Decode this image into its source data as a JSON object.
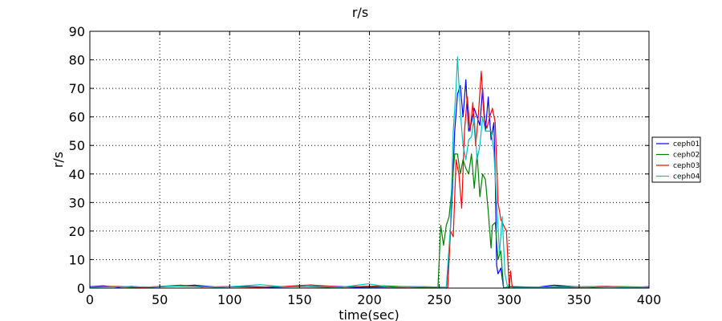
{
  "chart_data": {
    "type": "line",
    "title": "r/s",
    "xlabel": "time(sec)",
    "ylabel": "r/s",
    "xlim": [
      0,
      400
    ],
    "ylim": [
      0,
      90
    ],
    "xticks": [
      0,
      50,
      100,
      150,
      200,
      250,
      300,
      350,
      400
    ],
    "yticks": [
      0,
      10,
      20,
      30,
      40,
      50,
      60,
      70,
      80,
      90
    ],
    "grid": true,
    "grid_style": "dotted",
    "legend_position": "center-right-outside",
    "series": [
      {
        "name": "ceph01",
        "color": "#0000ff",
        "points": [
          [
            0,
            0.5
          ],
          [
            10,
            0.8
          ],
          [
            20,
            0.3
          ],
          [
            30,
            0.6
          ],
          [
            40,
            0.2
          ],
          [
            60,
            0.7
          ],
          [
            75,
            1.0
          ],
          [
            90,
            0.4
          ],
          [
            110,
            0.6
          ],
          [
            130,
            0.3
          ],
          [
            150,
            0.5
          ],
          [
            170,
            0.7
          ],
          [
            190,
            0.3
          ],
          [
            210,
            0.4
          ],
          [
            230,
            0.5
          ],
          [
            250,
            0.2
          ],
          [
            255,
            0
          ],
          [
            257,
            12
          ],
          [
            259,
            30
          ],
          [
            261,
            55
          ],
          [
            263,
            68
          ],
          [
            265,
            71
          ],
          [
            267,
            60
          ],
          [
            269,
            73
          ],
          [
            271,
            55
          ],
          [
            273,
            58
          ],
          [
            275,
            63
          ],
          [
            277,
            60
          ],
          [
            279,
            57
          ],
          [
            281,
            70
          ],
          [
            283,
            55
          ],
          [
            285,
            67
          ],
          [
            287,
            52
          ],
          [
            289,
            58
          ],
          [
            290,
            40
          ],
          [
            291,
            8
          ],
          [
            292,
            5
          ],
          [
            294,
            7
          ],
          [
            296,
            0
          ],
          [
            300,
            0.5
          ],
          [
            320,
            0.3
          ],
          [
            332,
            1.0
          ],
          [
            350,
            0.4
          ],
          [
            370,
            0.6
          ],
          [
            390,
            0.3
          ],
          [
            400,
            0.5
          ]
        ]
      },
      {
        "name": "ceph02",
        "color": "#008000",
        "points": [
          [
            0,
            0.3
          ],
          [
            15,
            0.6
          ],
          [
            35,
            0.2
          ],
          [
            50,
            0.5
          ],
          [
            70,
            0.8
          ],
          [
            90,
            0.3
          ],
          [
            110,
            0.5
          ],
          [
            130,
            0.4
          ],
          [
            150,
            0.6
          ],
          [
            170,
            0.3
          ],
          [
            190,
            0.5
          ],
          [
            210,
            0.8
          ],
          [
            230,
            0.4
          ],
          [
            245,
            0.2
          ],
          [
            249,
            0
          ],
          [
            251,
            22
          ],
          [
            253,
            15
          ],
          [
            255,
            22
          ],
          [
            257,
            25
          ],
          [
            259,
            35
          ],
          [
            261,
            47
          ],
          [
            263,
            47
          ],
          [
            265,
            40
          ],
          [
            267,
            45
          ],
          [
            269,
            42
          ],
          [
            271,
            40
          ],
          [
            273,
            47
          ],
          [
            275,
            35
          ],
          [
            277,
            47
          ],
          [
            279,
            32
          ],
          [
            281,
            40
          ],
          [
            283,
            38
          ],
          [
            285,
            27
          ],
          [
            287,
            14
          ],
          [
            288,
            22
          ],
          [
            290,
            23
          ],
          [
            292,
            10
          ],
          [
            294,
            13
          ],
          [
            296,
            0
          ],
          [
            300,
            0.5
          ],
          [
            320,
            0.3
          ],
          [
            340,
            0.6
          ],
          [
            360,
            0.3
          ],
          [
            380,
            0.5
          ],
          [
            400,
            0.4
          ]
        ]
      },
      {
        "name": "ceph03",
        "color": "#ff0000",
        "points": [
          [
            0,
            0.4
          ],
          [
            20,
            0.6
          ],
          [
            40,
            0.3
          ],
          [
            65,
            1.0
          ],
          [
            80,
            0.4
          ],
          [
            100,
            0.5
          ],
          [
            120,
            0.3
          ],
          [
            140,
            0.6
          ],
          [
            158,
            1.1
          ],
          [
            180,
            0.4
          ],
          [
            200,
            0.6
          ],
          [
            220,
            0.3
          ],
          [
            240,
            0.5
          ],
          [
            256,
            0.2
          ],
          [
            258,
            20
          ],
          [
            260,
            18
          ],
          [
            262,
            45
          ],
          [
            264,
            40
          ],
          [
            266,
            28
          ],
          [
            268,
            55
          ],
          [
            270,
            67
          ],
          [
            272,
            55
          ],
          [
            274,
            65
          ],
          [
            276,
            50
          ],
          [
            278,
            61
          ],
          [
            280,
            76
          ],
          [
            282,
            60
          ],
          [
            284,
            56
          ],
          [
            286,
            60
          ],
          [
            288,
            63
          ],
          [
            290,
            58
          ],
          [
            292,
            30
          ],
          [
            294,
            24
          ],
          [
            296,
            22
          ],
          [
            298,
            20
          ],
          [
            300,
            0
          ],
          [
            301,
            6
          ],
          [
            302,
            1
          ],
          [
            303,
            0
          ],
          [
            320,
            0.4
          ],
          [
            345,
            0.3
          ],
          [
            365,
            0.6
          ],
          [
            385,
            0.4
          ],
          [
            400,
            0.3
          ]
        ]
      },
      {
        "name": "ceph04",
        "color": "#00bfbf",
        "points": [
          [
            0,
            0.3
          ],
          [
            25,
            0.5
          ],
          [
            45,
            0.4
          ],
          [
            55,
            0.7
          ],
          [
            78,
            0.5
          ],
          [
            95,
            0.3
          ],
          [
            122,
            1.2
          ],
          [
            140,
            0.4
          ],
          [
            160,
            0.6
          ],
          [
            180,
            0.3
          ],
          [
            199,
            1.5
          ],
          [
            215,
            0.3
          ],
          [
            235,
            0.5
          ],
          [
            255,
            0.3
          ],
          [
            258,
            22
          ],
          [
            260,
            55
          ],
          [
            262,
            70
          ],
          [
            263,
            81
          ],
          [
            265,
            62
          ],
          [
            267,
            50
          ],
          [
            269,
            45
          ],
          [
            271,
            52
          ],
          [
            273,
            53
          ],
          [
            275,
            60
          ],
          [
            277,
            45
          ],
          [
            279,
            50
          ],
          [
            281,
            60
          ],
          [
            283,
            55
          ],
          [
            285,
            55
          ],
          [
            287,
            55
          ],
          [
            289,
            48
          ],
          [
            291,
            30
          ],
          [
            293,
            12
          ],
          [
            295,
            25
          ],
          [
            297,
            5
          ],
          [
            299,
            0
          ],
          [
            320,
            0.4
          ],
          [
            340,
            0.3
          ],
          [
            360,
            0.5
          ],
          [
            380,
            0.3
          ],
          [
            400,
            0.4
          ]
        ]
      }
    ]
  }
}
